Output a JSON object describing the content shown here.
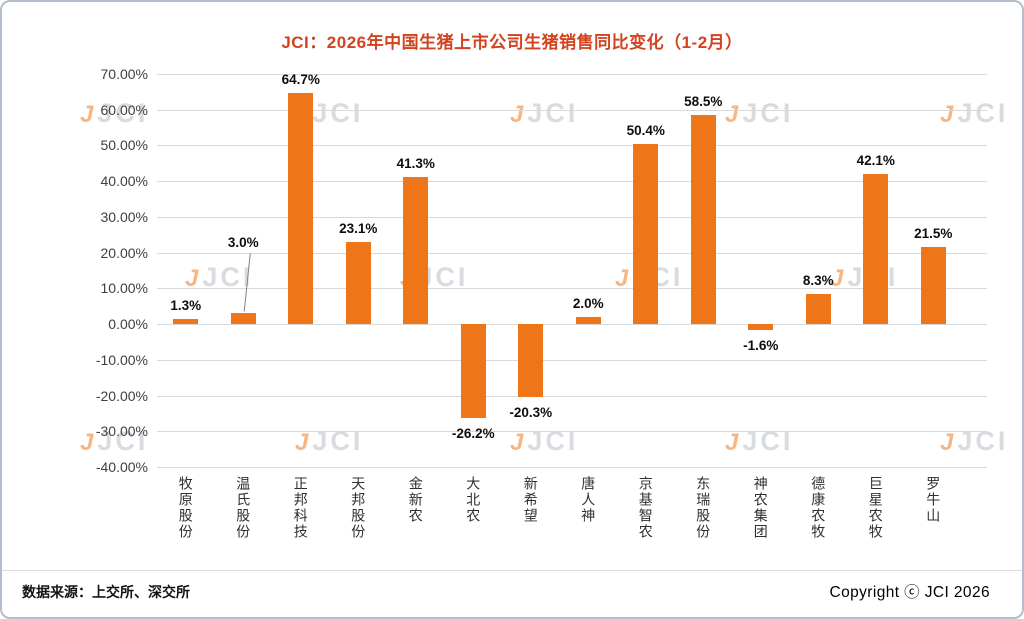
{
  "card": {
    "footer_source": "数据来源：上交所、深交所",
    "footer_copyright": "Copyright ⓒ JCI  2026"
  },
  "watermark": {
    "logo": "J",
    "text": "JCI"
  },
  "colors": {
    "bar": "#ee7518",
    "title": "#d2431f",
    "gridline": "#d9d9d9"
  },
  "chart_data": {
    "type": "bar",
    "title": "JCI：2026年中国生猪上市公司生猪销售同比变化（1-2月）",
    "categories": [
      "牧原股份",
      "温氏股份",
      "正邦科技",
      "天邦股份",
      "金新农",
      "大北农",
      "新希望",
      "唐人神",
      "京基智农",
      "东瑞股份",
      "神农集团",
      "德康农牧",
      "巨星农牧",
      "罗牛山"
    ],
    "values": [
      1.3,
      3.0,
      64.7,
      23.1,
      41.3,
      -26.2,
      -20.3,
      2.0,
      50.4,
      58.5,
      -1.6,
      8.3,
      42.1,
      21.5
    ],
    "labels": [
      "1.3%",
      "3.0%",
      "64.7%",
      "23.1%",
      "41.3%",
      "-26.2%",
      "-20.3%",
      "2.0%",
      "50.4%",
      "58.5%",
      "-1.6%",
      "8.3%",
      "42.1%",
      "21.5%"
    ],
    "ylim": [
      -40,
      70
    ],
    "ytick_step": 10,
    "ytick_labels": [
      "70.00%",
      "60.00%",
      "50.00%",
      "40.00%",
      "30.00%",
      "20.00%",
      "10.00%",
      "0.00%",
      "-10.00%",
      "-20.00%",
      "-30.00%",
      "-40.00%"
    ],
    "grid": true,
    "legend": "none",
    "bar_color": "#ee7518",
    "callout_categories": [
      "温氏股份"
    ]
  }
}
